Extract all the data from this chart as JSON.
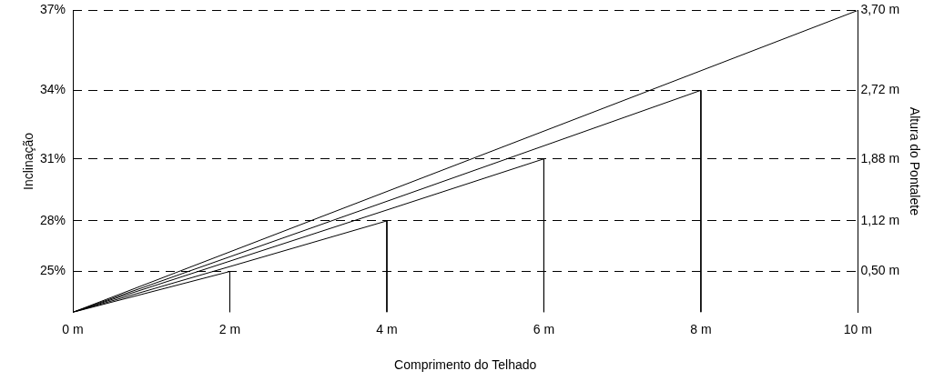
{
  "chart_data": {
    "type": "line",
    "xlabel": "Comprimento do Telhado",
    "ylabel": "Altura do Pontalete",
    "series": [
      {
        "color": "#000000",
        "x": [
          0,
          2,
          2
        ],
        "values": [
          0,
          0.5,
          0
        ]
      },
      {
        "color": "#000000",
        "x": [
          0,
          4,
          4
        ],
        "values": [
          0,
          1.12,
          0
        ]
      },
      {
        "color": "#000000",
        "x": [
          0,
          6,
          6
        ],
        "values": [
          0,
          1.88,
          0
        ]
      },
      {
        "color": "#000000",
        "x": [
          0,
          8,
          8
        ],
        "values": [
          0,
          2.72,
          0
        ]
      },
      {
        "color": "#000000",
        "x": [
          0,
          10
        ],
        "values": [
          0,
          3.7
        ]
      }
    ],
    "xlim": [
      0,
      10
    ],
    "xticks": [
      {
        "value": 0,
        "label": "0 m"
      },
      {
        "value": 2,
        "label": "2 m"
      },
      {
        "value": 4,
        "label": "4 m"
      },
      {
        "value": 6,
        "label": "6 m"
      },
      {
        "value": 8,
        "label": "8 m"
      },
      {
        "value": 10,
        "label": "10 m"
      }
    ],
    "ylim": [
      0,
      3.7
    ],
    "yticks": [
      {
        "value": 0.5,
        "label": "0,50 m"
      },
      {
        "value": 1.12,
        "label": "1,12 m"
      },
      {
        "value": 1.88,
        "label": "1,88 m"
      },
      {
        "value": 2.72,
        "label": "2,72 m"
      },
      {
        "value": 3.7,
        "label": "3,70 m"
      }
    ],
    "grid": "y",
    "annotations": [
      "Inclinação",
      "25%",
      "28%",
      "31%",
      "34%",
      "37%"
    ],
    "marker": "none",
    "line_style": "solid",
    "legend": false
  }
}
